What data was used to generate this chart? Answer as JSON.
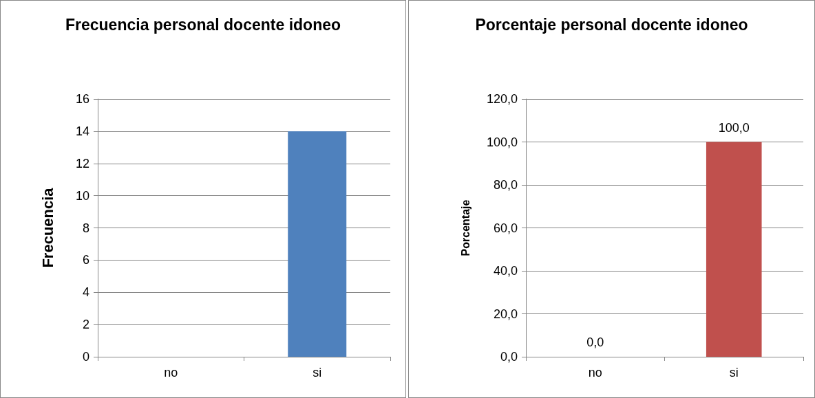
{
  "chart_data": [
    {
      "type": "bar",
      "title": "Frecuencia personal docente idoneo",
      "ylabel": "Frecuencia",
      "categories": [
        "no",
        "si"
      ],
      "values": [
        0,
        14
      ],
      "color": "#4f81bd",
      "ylim": [
        0,
        16
      ],
      "yticks": [
        0,
        2,
        4,
        6,
        8,
        10,
        12,
        14,
        16
      ],
      "grid": "y"
    },
    {
      "type": "bar",
      "title": "Porcentaje personal docente idoneo",
      "ylabel": "Porcentaje",
      "categories": [
        "no",
        "si"
      ],
      "values": [
        0,
        100
      ],
      "value_labels": [
        "0,0",
        "100,0"
      ],
      "color": "#c0504d",
      "ylim": [
        0,
        120
      ],
      "yticks": [
        {
          "value": 0,
          "label": "0,0"
        },
        {
          "value": 20,
          "label": "20,0"
        },
        {
          "value": 40,
          "label": "40,0"
        },
        {
          "value": 60,
          "label": "60,0"
        },
        {
          "value": 80,
          "label": "80,0"
        },
        {
          "value": 100,
          "label": "100,0"
        },
        {
          "value": 120,
          "label": "120,0"
        }
      ],
      "grid": "y"
    }
  ]
}
